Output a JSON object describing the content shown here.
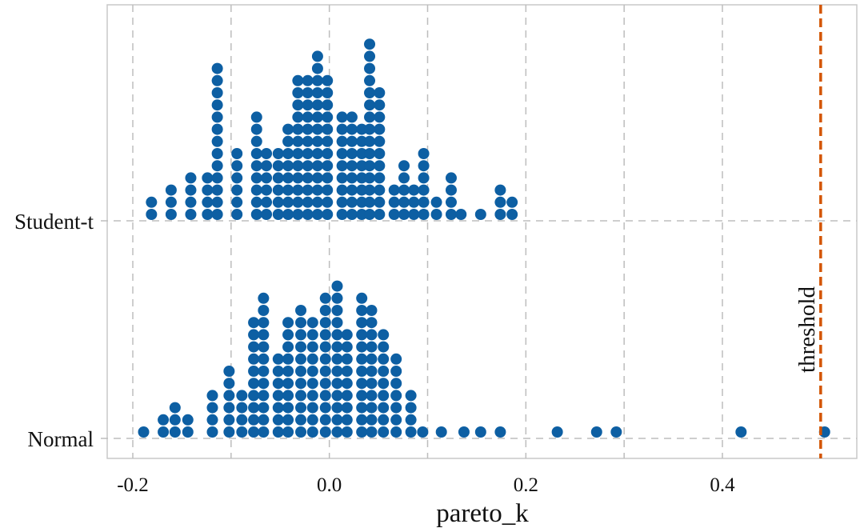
{
  "chart_data": {
    "type": "dotplot",
    "title": "",
    "xlabel": "pareto_k",
    "ylabel": "",
    "xlim": [
      -0.225,
      0.54
    ],
    "xticks": [
      -0.2,
      0.0,
      0.2,
      0.4
    ],
    "xtick_labels": [
      "-0.2",
      "0.0",
      "0.2",
      "0.4"
    ],
    "minor_grid_x": [
      -0.1,
      0.1,
      0.3
    ],
    "grid": true,
    "categories": [
      "Student-t",
      "Normal"
    ],
    "dot_stack_step": 0.0165,
    "series": [
      {
        "name": "Student-t",
        "dots": [
          {
            "x": -0.181,
            "count": 2
          },
          {
            "x": -0.161,
            "count": 3
          },
          {
            "x": -0.141,
            "count": 4
          },
          {
            "x": -0.124,
            "count": 4
          },
          {
            "x": -0.114,
            "count": 13
          },
          {
            "x": -0.094,
            "count": 6
          },
          {
            "x": -0.074,
            "count": 9
          },
          {
            "x": -0.064,
            "count": 6
          },
          {
            "x": -0.052,
            "count": 6
          },
          {
            "x": -0.042,
            "count": 8
          },
          {
            "x": -0.032,
            "count": 12
          },
          {
            "x": -0.022,
            "count": 12
          },
          {
            "x": -0.012,
            "count": 14
          },
          {
            "x": -0.002,
            "count": 12
          },
          {
            "x": 0.013,
            "count": 9
          },
          {
            "x": 0.023,
            "count": 9
          },
          {
            "x": 0.033,
            "count": 8
          },
          {
            "x": 0.041,
            "count": 15
          },
          {
            "x": 0.051,
            "count": 11
          },
          {
            "x": 0.066,
            "count": 3
          },
          {
            "x": 0.076,
            "count": 5
          },
          {
            "x": 0.086,
            "count": 3
          },
          {
            "x": 0.096,
            "count": 6
          },
          {
            "x": 0.109,
            "count": 2
          },
          {
            "x": 0.124,
            "count": 4
          },
          {
            "x": 0.134,
            "count": 1
          },
          {
            "x": 0.154,
            "count": 1
          },
          {
            "x": 0.174,
            "count": 3
          },
          {
            "x": 0.186,
            "count": 2
          }
        ]
      },
      {
        "name": "Normal",
        "dots": [
          {
            "x": -0.189,
            "count": 1
          },
          {
            "x": -0.169,
            "count": 2
          },
          {
            "x": -0.157,
            "count": 3
          },
          {
            "x": -0.144,
            "count": 2
          },
          {
            "x": -0.119,
            "count": 4
          },
          {
            "x": -0.102,
            "count": 6
          },
          {
            "x": -0.089,
            "count": 4
          },
          {
            "x": -0.077,
            "count": 10
          },
          {
            "x": -0.067,
            "count": 12
          },
          {
            "x": -0.052,
            "count": 7
          },
          {
            "x": -0.042,
            "count": 10
          },
          {
            "x": -0.029,
            "count": 11
          },
          {
            "x": -0.017,
            "count": 10
          },
          {
            "x": -0.004,
            "count": 12
          },
          {
            "x": 0.008,
            "count": 13
          },
          {
            "x": 0.018,
            "count": 9
          },
          {
            "x": 0.033,
            "count": 12
          },
          {
            "x": 0.043,
            "count": 11
          },
          {
            "x": 0.055,
            "count": 9
          },
          {
            "x": 0.068,
            "count": 7
          },
          {
            "x": 0.083,
            "count": 4
          },
          {
            "x": 0.095,
            "count": 1
          },
          {
            "x": 0.114,
            "count": 1
          },
          {
            "x": 0.137,
            "count": 1
          },
          {
            "x": 0.154,
            "count": 1
          },
          {
            "x": 0.174,
            "count": 1
          },
          {
            "x": 0.232,
            "count": 1
          },
          {
            "x": 0.272,
            "count": 1
          },
          {
            "x": 0.292,
            "count": 1
          },
          {
            "x": 0.419,
            "count": 1
          },
          {
            "x": 0.504,
            "count": 1
          }
        ]
      }
    ],
    "reference_line": {
      "x": 0.5,
      "label": "threshold",
      "color": "#d35400",
      "style": "dashed"
    },
    "dot_color": "#0d5fa3"
  }
}
